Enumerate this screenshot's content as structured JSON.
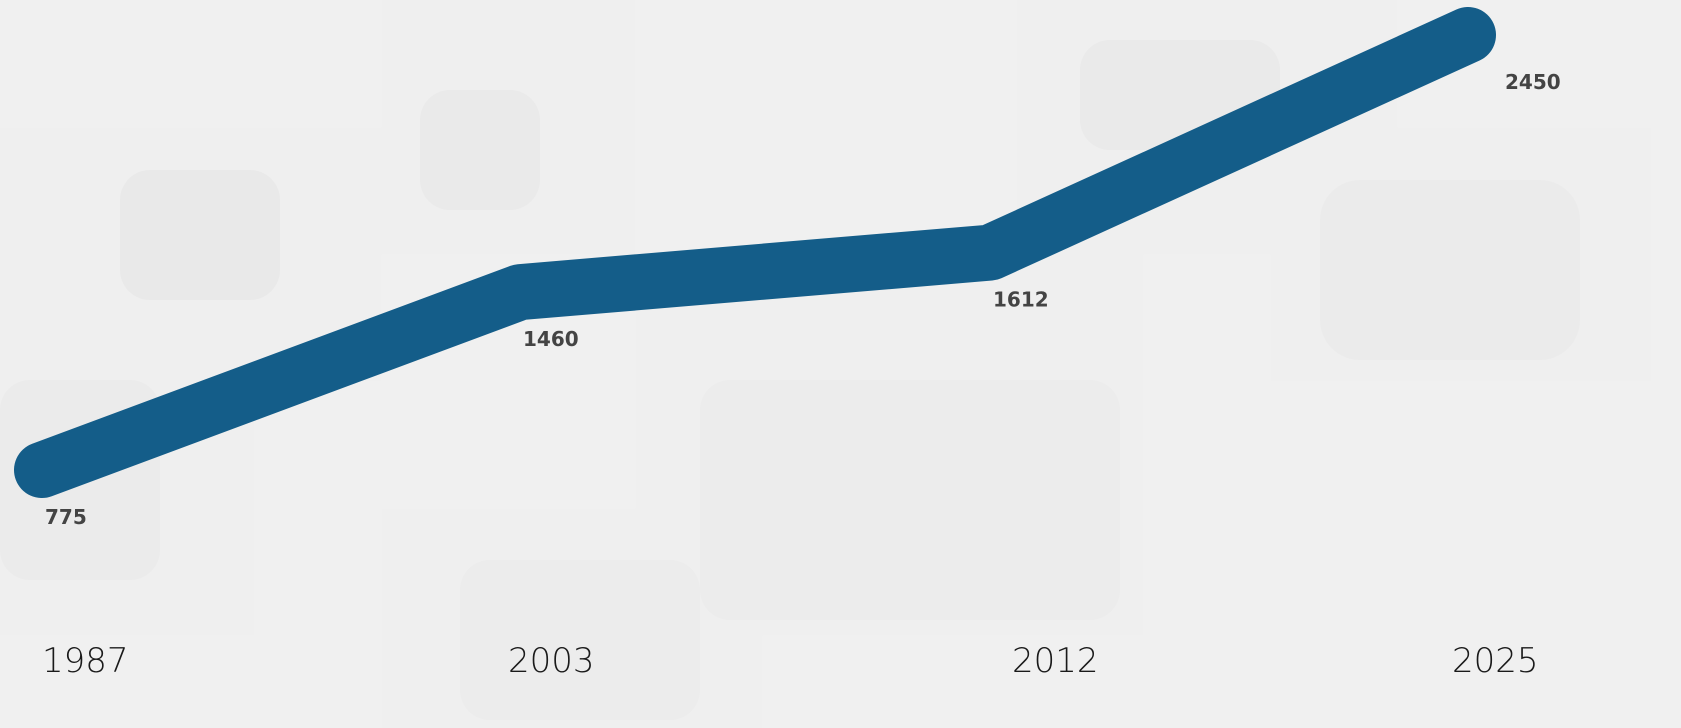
{
  "chart_data": {
    "type": "line",
    "categories": [
      "1987",
      "2003",
      "2012",
      "2025"
    ],
    "series": [
      {
        "color": "#145d89",
        "values": [
          775,
          1460,
          1612,
          2450
        ]
      }
    ]
  }
}
